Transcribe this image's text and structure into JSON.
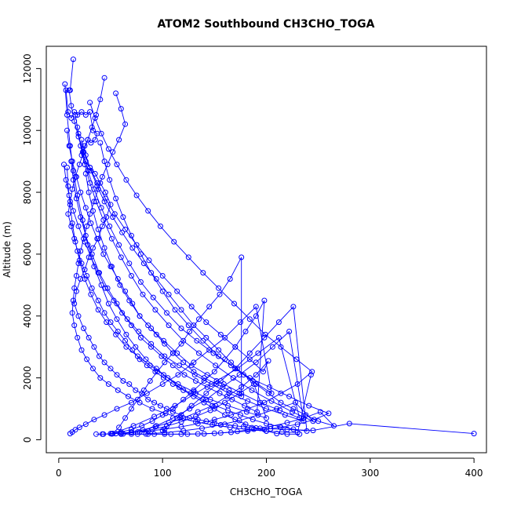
{
  "chart_data": {
    "type": "scatter",
    "title": "ATOM2 Southbound CH3CHO_TOGA",
    "xlabel": "CH3CHO_TOGA",
    "ylabel": "Altitude (m)",
    "xlim": [
      -12,
      412
    ],
    "ylim": [
      -420,
      12720
    ],
    "xticks": [
      0,
      100,
      200,
      300,
      400
    ],
    "yticks": [
      0,
      2000,
      4000,
      6000,
      8000,
      10000,
      12000
    ],
    "series_color": "#0000ff",
    "series": [
      {
        "x": [
          14,
          11,
          7,
          9,
          12,
          15,
          18,
          22,
          26,
          30,
          33,
          37,
          35,
          31,
          28,
          25,
          22,
          26,
          30,
          35,
          40,
          45,
          50,
          46,
          42,
          38,
          33,
          29,
          25,
          21,
          17,
          15,
          19,
          24,
          29,
          34,
          39,
          44,
          50,
          56,
          62,
          68,
          74,
          80,
          86,
          92,
          98,
          104,
          110,
          118,
          126,
          134,
          142,
          150,
          160,
          170,
          178,
          186,
          194,
          204,
          220,
          245,
          280,
          400
        ],
        "y": [
          12300,
          11300,
          11300,
          10600,
          10400,
          10600,
          10500,
          10600,
          10500,
          10600,
          10000,
          9900,
          9700,
          9600,
          9700,
          9500,
          9200,
          9000,
          8800,
          8600,
          8300,
          8000,
          7600,
          7200,
          6900,
          6500,
          6200,
          5900,
          5500,
          5200,
          4800,
          4400,
          4000,
          3600,
          3300,
          3000,
          2700,
          2500,
          2300,
          2100,
          1900,
          1800,
          1600,
          1500,
          1300,
          1200,
          1100,
          1000,
          900,
          800,
          700,
          650,
          600,
          550,
          500,
          450,
          420,
          390,
          370,
          350,
          330,
          300,
          520,
          200
        ]
      },
      {
        "x": [
          44,
          40,
          36,
          32,
          28,
          24,
          20,
          16,
          13,
          11,
          9,
          12,
          15,
          18,
          22,
          27,
          32,
          38,
          44,
          50,
          57,
          64,
          71,
          78,
          85,
          93,
          101,
          110,
          120,
          130,
          140,
          150,
          160,
          170,
          180,
          190,
          200,
          210,
          220,
          232
        ],
        "y": [
          11700,
          11000,
          10500,
          10100,
          9700,
          9300,
          8900,
          8500,
          8100,
          7700,
          7300,
          6900,
          6500,
          6100,
          5700,
          5300,
          4900,
          4500,
          4100,
          3800,
          3500,
          3200,
          2900,
          2600,
          2400,
          2200,
          2000,
          1800,
          1600,
          1400,
          1200,
          1000,
          800,
          650,
          500,
          380,
          280,
          200,
          180,
          180
        ]
      },
      {
        "x": [
          8,
          10,
          13,
          17,
          21,
          26,
          31,
          37,
          43,
          50,
          57,
          64,
          71,
          78,
          86,
          94,
          102,
          110,
          120,
          130,
          140,
          152,
          164,
          176,
          176,
          165,
          155,
          145,
          135,
          126,
          118,
          110,
          102,
          95,
          88,
          82,
          76,
          70,
          64,
          58,
          52
        ],
        "y": [
          10000,
          9500,
          9000,
          8500,
          8000,
          7500,
          7000,
          6500,
          6000,
          5600,
          5200,
          4800,
          4400,
          4000,
          3700,
          3400,
          3100,
          2800,
          2500,
          2200,
          2000,
          1800,
          1600,
          1400,
          5900,
          5200,
          4700,
          4300,
          3900,
          3500,
          3100,
          2800,
          2500,
          2200,
          1900,
          1600,
          1300,
          1000,
          700,
          400,
          200
        ]
      },
      {
        "x": [
          5,
          7,
          10,
          14,
          19,
          25,
          31,
          38,
          45,
          53,
          61,
          70,
          79,
          89,
          99,
          110,
          121,
          132,
          143,
          155,
          167,
          179,
          191,
          198,
          190,
          180,
          170,
          160,
          150,
          140,
          130,
          120,
          110,
          100,
          90,
          80,
          70,
          60,
          50
        ],
        "y": [
          8900,
          8400,
          7900,
          7400,
          6900,
          6400,
          5900,
          5400,
          4900,
          4500,
          4100,
          3700,
          3300,
          3000,
          2700,
          2400,
          2100,
          1900,
          1700,
          1500,
          1300,
          1100,
          900,
          4500,
          4000,
          3500,
          3000,
          2600,
          2200,
          1900,
          1600,
          1300,
          1000,
          800,
          600,
          450,
          330,
          250,
          200
        ]
      },
      {
        "x": [
          55,
          60,
          64,
          58,
          52,
          47,
          42,
          38,
          34,
          30,
          27,
          24,
          21,
          19,
          17,
          15,
          14,
          13,
          15,
          18,
          22,
          27,
          33,
          40,
          48,
          57,
          67,
          78,
          90,
          103,
          117,
          132,
          148,
          165,
          182,
          200,
          215,
          230,
          243
        ],
        "y": [
          11200,
          10700,
          10200,
          9700,
          9300,
          8900,
          8500,
          8100,
          7700,
          7300,
          6900,
          6500,
          6100,
          5700,
          5300,
          4900,
          4500,
          4100,
          3700,
          3300,
          2900,
          2600,
          2300,
          2000,
          1800,
          1600,
          1400,
          1200,
          1000,
          850,
          700,
          580,
          480,
          400,
          330,
          280,
          250,
          230,
          2100
        ]
      },
      {
        "x": [
          10,
          12,
          15,
          19,
          24,
          30,
          37,
          45,
          54,
          64,
          75,
          87,
          100,
          114,
          128,
          142,
          156,
          170,
          184,
          197,
          202,
          190,
          176,
          162,
          148,
          134,
          120,
          106,
          93,
          81,
          70,
          60,
          51,
          43,
          36
        ],
        "y": [
          11300,
          10800,
          10300,
          9800,
          9300,
          8800,
          8300,
          7800,
          7300,
          6800,
          6300,
          5800,
          5300,
          4800,
          4300,
          3800,
          3400,
          3000,
          2600,
          2200,
          2550,
          2100,
          1700,
          1400,
          1100,
          900,
          700,
          550,
          420,
          320,
          250,
          210,
          190,
          180,
          180
        ]
      },
      {
        "x": [
          22,
          26,
          31,
          37,
          44,
          52,
          61,
          71,
          82,
          94,
          106,
          118,
          130,
          142,
          154,
          166,
          178,
          190,
          202,
          214,
          226,
          238,
          250,
          265,
          252,
          236,
          220,
          204,
          188,
          172,
          156,
          140,
          124,
          108,
          92,
          76,
          60
        ],
        "y": [
          9700,
          9200,
          8700,
          8200,
          7700,
          7200,
          6700,
          6200,
          5700,
          5200,
          4700,
          4200,
          3700,
          3300,
          2900,
          2500,
          2100,
          1800,
          1500,
          1200,
          1000,
          800,
          600,
          450,
          900,
          700,
          550,
          430,
          340,
          270,
          220,
          190,
          180,
          180,
          180,
          180,
          180
        ]
      },
      {
        "x": [
          6,
          8,
          11,
          14,
          18,
          23,
          28,
          34,
          41,
          48,
          56,
          65,
          74,
          84,
          94,
          105,
          116,
          127,
          139,
          151,
          163,
          175,
          187,
          200,
          213,
          226,
          239,
          226,
          212,
          198,
          184,
          170,
          156,
          142,
          128,
          114,
          100
        ],
        "y": [
          11500,
          10500,
          9500,
          8700,
          7900,
          7100,
          6300,
          5600,
          5000,
          4400,
          3900,
          3400,
          3000,
          2600,
          2300,
          2000,
          1700,
          1500,
          1300,
          1100,
          950,
          800,
          650,
          520,
          420,
          340,
          280,
          4300,
          3800,
          3300,
          2800,
          2300,
          1900,
          1500,
          1100,
          700,
          300
        ]
      },
      {
        "x": [
          30,
          35,
          41,
          48,
          56,
          65,
          75,
          86,
          98,
          111,
          125,
          139,
          154,
          169,
          184,
          199,
          214,
          229,
          244,
          230,
          214,
          198,
          182,
          166,
          150,
          134,
          118,
          102,
          86,
          70,
          55,
          42
        ],
        "y": [
          10900,
          10400,
          9900,
          9400,
          8900,
          8400,
          7900,
          7400,
          6900,
          6400,
          5900,
          5400,
          4900,
          4400,
          3900,
          3400,
          3000,
          2600,
          2200,
          1800,
          1500,
          1200,
          1000,
          800,
          650,
          520,
          420,
          340,
          280,
          230,
          200,
          180
        ]
      },
      {
        "x": [
          8,
          9,
          11,
          13,
          16,
          20,
          25,
          31,
          38,
          46,
          55,
          65,
          76,
          88,
          101,
          115,
          130,
          146,
          163,
          181,
          200,
          188,
          174,
          160,
          146,
          132,
          118,
          104,
          90,
          76,
          62
        ],
        "y": [
          8800,
          8200,
          7600,
          7000,
          6400,
          5800,
          5200,
          4700,
          4200,
          3800,
          3400,
          3000,
          2700,
          2400,
          2100,
          1800,
          1550,
          1300,
          1100,
          900,
          700,
          1800,
          1500,
          1200,
          950,
          750,
          580,
          440,
          330,
          250,
          190
        ]
      },
      {
        "x": [
          16,
          19,
          23,
          28,
          34,
          41,
          49,
          58,
          68,
          79,
          91,
          104,
          118,
          133,
          149,
          166,
          184,
          203,
          222,
          241,
          260,
          246,
          230,
          214,
          198,
          182,
          166,
          150,
          134,
          118,
          102,
          86,
          70
        ],
        "y": [
          10500,
          9900,
          9300,
          8700,
          8100,
          7500,
          6900,
          6300,
          5700,
          5100,
          4600,
          4100,
          3600,
          3200,
          2800,
          2400,
          2000,
          1700,
          1400,
          1100,
          850,
          650,
          500,
          400,
          330,
          280,
          240,
          210,
          190,
          180,
          180,
          180,
          180
        ]
      },
      {
        "x": [
          12,
          14,
          17,
          21,
          26,
          32,
          39,
          47,
          56,
          66,
          77,
          89,
          102,
          116,
          131,
          147,
          164,
          182,
          200,
          218,
          236,
          222,
          206,
          190,
          174,
          158,
          142,
          126,
          110,
          94,
          78
        ],
        "y": [
          9000,
          8400,
          7800,
          7200,
          6600,
          6000,
          5400,
          4900,
          4400,
          3900,
          3500,
          3100,
          2700,
          2400,
          2100,
          1800,
          1500,
          1250,
          1000,
          800,
          600,
          3500,
          3000,
          2500,
          2100,
          1700,
          1300,
          1000,
          700,
          450,
          250
        ]
      },
      {
        "x": [
          40,
          44,
          49,
          55,
          62,
          70,
          79,
          89,
          100,
          112,
          125,
          139,
          154,
          170,
          187,
          205,
          190,
          175,
          160,
          145,
          130,
          115,
          100,
          85,
          70,
          56,
          44,
          34,
          26,
          20,
          16,
          13,
          11
        ],
        "y": [
          9600,
          9000,
          8400,
          7800,
          7200,
          6600,
          6000,
          5400,
          4800,
          4200,
          3700,
          3200,
          2700,
          2300,
          1900,
          1500,
          4300,
          3800,
          3300,
          2900,
          2500,
          2100,
          1800,
          1500,
          1200,
          1000,
          800,
          650,
          500,
          400,
          320,
          250,
          200
        ]
      },
      {
        "x": [
          18,
          21,
          25,
          30,
          36,
          43,
          51,
          60,
          70,
          81,
          93,
          106,
          120,
          135,
          151,
          168,
          186,
          205,
          225,
          245,
          228,
          210,
          192,
          174,
          156,
          138,
          120,
          102,
          84
        ],
        "y": [
          10100,
          9500,
          8900,
          8300,
          7700,
          7100,
          6500,
          5900,
          5300,
          4700,
          4200,
          3700,
          3200,
          2800,
          2400,
          2000,
          1600,
          1250,
          900,
          600,
          1200,
          1000,
          800,
          620,
          480,
          370,
          290,
          230,
          190
        ]
      },
      {
        "x": [
          26,
          29,
          33,
          38,
          44,
          51,
          59,
          68,
          78,
          89,
          101,
          114,
          128,
          143,
          159,
          176,
          194,
          213,
          232,
          212,
          192,
          172,
          152,
          132,
          112,
          92,
          72,
          52
        ],
        "y": [
          8600,
          8000,
          7400,
          6800,
          6200,
          5600,
          5000,
          4500,
          4000,
          3600,
          3200,
          2800,
          2400,
          2100,
          1800,
          1500,
          1200,
          950,
          700,
          3300,
          2800,
          2300,
          1900,
          1500,
          1100,
          750,
          450,
          200
        ]
      }
    ]
  }
}
